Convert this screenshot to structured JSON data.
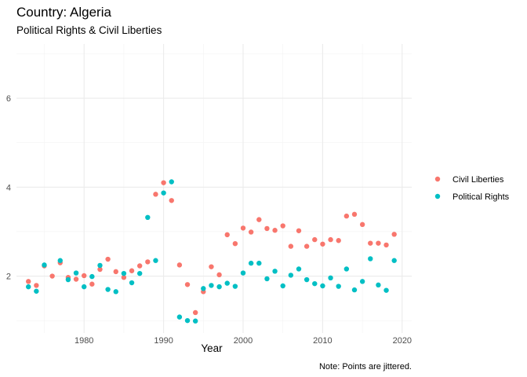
{
  "chart_data": {
    "type": "scatter",
    "title": "Country: Algeria",
    "subtitle": "Political Rights & Civil Liberties",
    "xlabel": "Year",
    "ylabel": "",
    "caption": "Note: Points are jittered.",
    "xlim": [
      1971.5,
      2021.2
    ],
    "ylim": [
      0.72,
      7.22
    ],
    "x_ticks": [
      1980,
      1990,
      2000,
      2010,
      2020
    ],
    "y_ticks": [
      2,
      4,
      6
    ],
    "grid": true,
    "legend_position": "right",
    "series": [
      {
        "name": "Civil Liberties",
        "color": "#F8766D",
        "points": [
          [
            1973,
            1.88
          ],
          [
            1974,
            1.79
          ],
          [
            1975,
            2.23
          ],
          [
            1976,
            2.0
          ],
          [
            1977,
            2.3
          ],
          [
            1978,
            1.97
          ],
          [
            1979,
            1.93
          ],
          [
            1980,
            2.01
          ],
          [
            1981,
            1.82
          ],
          [
            1982,
            2.15
          ],
          [
            1983,
            2.38
          ],
          [
            1984,
            2.1
          ],
          [
            1985,
            1.97
          ],
          [
            1986,
            2.12
          ],
          [
            1987,
            2.23
          ],
          [
            1988,
            2.32
          ],
          [
            1989,
            3.84
          ],
          [
            1990,
            4.1
          ],
          [
            1991,
            3.7
          ],
          [
            1992,
            2.25
          ],
          [
            1993,
            1.81
          ],
          [
            1994,
            1.18
          ],
          [
            1995,
            1.65
          ],
          [
            1996,
            2.21
          ],
          [
            1997,
            2.03
          ],
          [
            1998,
            2.93
          ],
          [
            1999,
            2.73
          ],
          [
            2000,
            3.08
          ],
          [
            2001,
            2.99
          ],
          [
            2002,
            3.27
          ],
          [
            2003,
            3.07
          ],
          [
            2004,
            3.03
          ],
          [
            2005,
            3.13
          ],
          [
            2006,
            2.67
          ],
          [
            2007,
            3.02
          ],
          [
            2008,
            2.67
          ],
          [
            2009,
            2.82
          ],
          [
            2010,
            2.72
          ],
          [
            2011,
            2.82
          ],
          [
            2012,
            2.8
          ],
          [
            2013,
            3.35
          ],
          [
            2014,
            3.39
          ],
          [
            2015,
            3.16
          ],
          [
            2016,
            2.74
          ],
          [
            2017,
            2.74
          ],
          [
            2018,
            2.7
          ],
          [
            2019,
            2.94
          ]
        ]
      },
      {
        "name": "Political Rights",
        "color": "#00BFC4",
        "points": [
          [
            1973,
            1.76
          ],
          [
            1974,
            1.66
          ],
          [
            1975,
            2.25
          ],
          [
            1977,
            2.35
          ],
          [
            1978,
            1.92
          ],
          [
            1979,
            2.07
          ],
          [
            1980,
            1.76
          ],
          [
            1981,
            1.99
          ],
          [
            1982,
            2.24
          ],
          [
            1983,
            1.7
          ],
          [
            1984,
            1.65
          ],
          [
            1985,
            2.06
          ],
          [
            1986,
            1.85
          ],
          [
            1987,
            2.06
          ],
          [
            1988,
            3.32
          ],
          [
            1989,
            2.35
          ],
          [
            1990,
            3.87
          ],
          [
            1991,
            4.12
          ],
          [
            1992,
            1.08
          ],
          [
            1993,
            1.0
          ],
          [
            1994,
            0.99
          ],
          [
            1995,
            1.72
          ],
          [
            1996,
            1.79
          ],
          [
            1997,
            1.76
          ],
          [
            1998,
            1.84
          ],
          [
            1999,
            1.77
          ],
          [
            2000,
            2.07
          ],
          [
            2001,
            2.29
          ],
          [
            2002,
            2.29
          ],
          [
            2003,
            1.94
          ],
          [
            2004,
            2.11
          ],
          [
            2005,
            1.78
          ],
          [
            2006,
            2.02
          ],
          [
            2007,
            2.16
          ],
          [
            2008,
            1.92
          ],
          [
            2009,
            1.83
          ],
          [
            2010,
            1.78
          ],
          [
            2011,
            1.96
          ],
          [
            2012,
            1.77
          ],
          [
            2013,
            2.16
          ],
          [
            2014,
            1.69
          ],
          [
            2015,
            1.88
          ],
          [
            2016,
            2.39
          ],
          [
            2017,
            1.8
          ],
          [
            2018,
            1.68
          ],
          [
            2019,
            2.35
          ]
        ]
      }
    ]
  }
}
